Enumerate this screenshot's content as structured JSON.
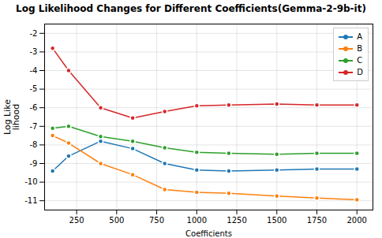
{
  "chart_data": {
    "type": "line",
    "title": "Log Likelihood Changes for Different Coefficients(Gemma-2-9b-it)",
    "xlabel": "Coefficients",
    "ylabel": "Log Like\nlihood",
    "x": [
      100,
      200,
      400,
      600,
      800,
      1000,
      1200,
      1500,
      1750,
      2000
    ],
    "series": [
      {
        "name": "A",
        "color": "#1f77b4",
        "values": [
          -9.4,
          -8.6,
          -7.8,
          -8.2,
          -9.0,
          -9.35,
          -9.4,
          -9.35,
          -9.3,
          -9.3
        ]
      },
      {
        "name": "B",
        "color": "#ff7f0e",
        "values": [
          -7.5,
          -7.9,
          -9.0,
          -9.6,
          -10.4,
          -10.55,
          -10.6,
          -10.75,
          -10.85,
          -10.95
        ]
      },
      {
        "name": "C",
        "color": "#2ca02c",
        "values": [
          -7.1,
          -7.0,
          -7.55,
          -7.8,
          -8.15,
          -8.4,
          -8.45,
          -8.5,
          -8.45,
          -8.45
        ]
      },
      {
        "name": "D",
        "color": "#d62728",
        "values": [
          -2.8,
          -4.0,
          -6.0,
          -6.55,
          -6.2,
          -5.9,
          -5.85,
          -5.8,
          -5.85,
          -5.85
        ]
      }
    ],
    "xlim": [
      50,
      2100
    ],
    "ylim": [
      -11.5,
      -1.5
    ],
    "xticks": [
      250,
      500,
      750,
      1000,
      1250,
      1500,
      1750,
      2000
    ],
    "yticks": [
      -11,
      -10,
      -9,
      -8,
      -7,
      -6,
      -5,
      -4,
      -3,
      -2
    ],
    "grid": true,
    "legend": "upper right",
    "marker": "circle"
  }
}
